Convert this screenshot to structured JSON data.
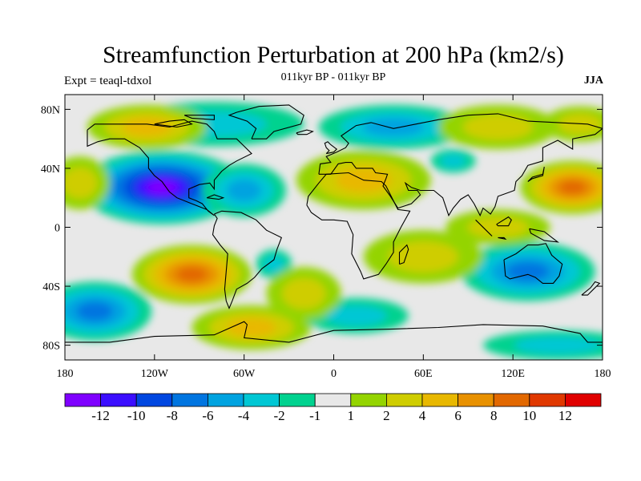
{
  "title": "Streamfunction Perturbation at 200 hPa (km2/s)",
  "subtitle": "011kyr BP - 011kyr BP",
  "experiment_label": "Expt = teaql-tdxol",
  "season_label": "JJA",
  "map": {
    "projection": "cylindrical-equidistant",
    "lon_range": [
      -180,
      180
    ],
    "lat_range": [
      -90,
      90
    ],
    "background_color": "#e8e8e8",
    "x_ticks": [
      {
        "value": -180,
        "label": "180"
      },
      {
        "value": -120,
        "label": "120W"
      },
      {
        "value": -60,
        "label": "60W"
      },
      {
        "value": 0,
        "label": "0"
      },
      {
        "value": 60,
        "label": "60E"
      },
      {
        "value": 120,
        "label": "120E"
      },
      {
        "value": 180,
        "label": "180"
      }
    ],
    "y_ticks": [
      {
        "value": 80,
        "label": "80N"
      },
      {
        "value": 40,
        "label": "40N"
      },
      {
        "value": 0,
        "label": "0"
      },
      {
        "value": -40,
        "label": "40S"
      },
      {
        "value": -80,
        "label": "80S"
      }
    ],
    "anomaly_features": [
      {
        "lon": -115,
        "lat": 27,
        "value": -13,
        "rx": 55,
        "ry": 25
      },
      {
        "lon": -160,
        "lat": -57,
        "value": -6,
        "rx": 38,
        "ry": 20
      },
      {
        "lon": 130,
        "lat": -30,
        "value": -7,
        "rx": 45,
        "ry": 20
      },
      {
        "lon": 40,
        "lat": 68,
        "value": -5,
        "rx": 50,
        "ry": 15
      },
      {
        "lon": -80,
        "lat": 70,
        "value": -3,
        "rx": 60,
        "ry": 15
      },
      {
        "lon": 80,
        "lat": 45,
        "value": -2,
        "rx": 15,
        "ry": 8
      },
      {
        "lon": -40,
        "lat": -25,
        "value": -2,
        "rx": 12,
        "ry": 10
      },
      {
        "lon": 20,
        "lat": 32,
        "value": 5,
        "rx": 45,
        "ry": 20
      },
      {
        "lon": 160,
        "lat": 27,
        "value": 8,
        "rx": 35,
        "ry": 18
      },
      {
        "lon": -95,
        "lat": -32,
        "value": 8,
        "rx": 40,
        "ry": 20
      },
      {
        "lon": -125,
        "lat": 68,
        "value": 5,
        "rx": 40,
        "ry": 15
      },
      {
        "lon": -55,
        "lat": -68,
        "value": 4,
        "rx": 40,
        "ry": 15
      },
      {
        "lon": 60,
        "lat": -20,
        "value": 2,
        "rx": 40,
        "ry": 18
      },
      {
        "lon": -170,
        "lat": 30,
        "value": 3,
        "rx": 20,
        "ry": 18
      },
      {
        "lon": 110,
        "lat": 0,
        "value": 3,
        "rx": 35,
        "ry": 12
      },
      {
        "lon": -60,
        "lat": 25,
        "value": -4,
        "rx": 28,
        "ry": 18
      },
      {
        "lon": 15,
        "lat": -60,
        "value": -2,
        "rx": 35,
        "ry": 12
      },
      {
        "lon": 150,
        "lat": -80,
        "value": -3,
        "rx": 50,
        "ry": 10
      },
      {
        "lon": -20,
        "lat": -45,
        "value": 3,
        "rx": 25,
        "ry": 18
      },
      {
        "lon": 110,
        "lat": 68,
        "value": 3,
        "rx": 40,
        "ry": 15
      },
      {
        "lon": 165,
        "lat": 70,
        "value": 3,
        "rx": 25,
        "ry": 12
      }
    ]
  },
  "colorbar": {
    "colors": [
      "#7f00ff",
      "#3b0eff",
      "#0047e0",
      "#0075e0",
      "#00a3e0",
      "#00c7d4",
      "#00d28f",
      "#e8e8e8",
      "#94d400",
      "#cfcd00",
      "#e8b800",
      "#e89100",
      "#e26800",
      "#e03800",
      "#e00000"
    ],
    "labels": [
      "-12",
      "-10",
      "-8",
      "-6",
      "-4",
      "-2",
      "-1",
      "1",
      "2",
      "4",
      "6",
      "8",
      "10",
      "12"
    ]
  }
}
